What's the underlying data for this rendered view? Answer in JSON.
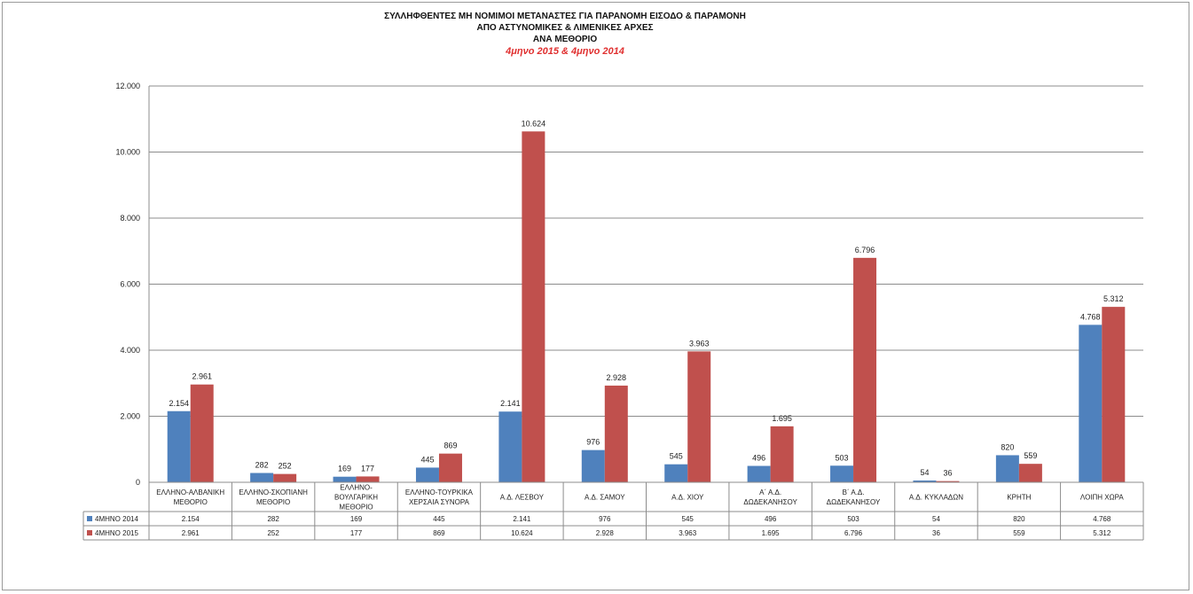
{
  "chart_data": {
    "type": "bar",
    "title_lines": [
      "ΣΥΛΛΗΦΘΕΝΤΕΣ ΜΗ ΝΟΜΙΜΟΙ ΜΕΤΑΝΑΣΤΕΣ ΓΙΑ ΠΑΡΑΝΟΜΗ ΕΙΣΟΔΟ & ΠΑΡΑΜΟΝΗ",
      "ΑΠΟ ΑΣΤΥΝΟΜΙΚΕΣ & ΛΙΜΕΝΙΚΕΣ ΑΡΧΕΣ",
      "ΑΝΑ ΜΕΘΟΡΙΟ"
    ],
    "subtitle": "4μηνο 2015  &  4μηνο 2014",
    "categories": [
      [
        "ΕΛΛΗΝΟ-ΑΛΒΑΝΙΚΗ",
        "ΜΕΘΟΡΙΟ"
      ],
      [
        "ΕΛΛΗΝΟ-ΣΚΟΠΙΑΝΗ",
        "ΜΕΘΟΡΙΟ"
      ],
      [
        "ΕΛΛΗΝΟ-",
        "ΒΟΥΛΓΑΡΙΚΗ",
        "ΜΕΘΟΡΙΟ"
      ],
      [
        "ΕΛΛΗΝΟ-ΤΟΥΡΚΙΚΑ",
        "ΧΕΡΣΑΙΑ ΣΥΝΟΡΑ"
      ],
      [
        "Α.Δ. ΛΕΣΒΟΥ"
      ],
      [
        "Α.Δ. ΣΑΜΟΥ"
      ],
      [
        "Α.Δ. ΧΙΟΥ"
      ],
      [
        "Α΄ Α.Δ.",
        "ΔΩΔΕΚΑΝΗΣΟΥ"
      ],
      [
        "Β΄ Α.Δ.",
        "ΔΩΔΕΚΑΝΗΣΟΥ"
      ],
      [
        "Α.Δ. ΚΥΚΛΑΔΩΝ"
      ],
      [
        "ΚΡΗΤΗ"
      ],
      [
        "ΛΟΙΠΗ ΧΩΡΑ"
      ]
    ],
    "series": [
      {
        "name": "4ΜΗΝΟ 2014",
        "color": "#4f81bd",
        "values": [
          2154,
          282,
          169,
          445,
          2141,
          976,
          545,
          496,
          503,
          54,
          820,
          4768
        ],
        "labels": [
          "2.154",
          "282",
          "169",
          "445",
          "2.141",
          "976",
          "545",
          "496",
          "503",
          "54",
          "820",
          "4.768"
        ]
      },
      {
        "name": "4ΜΗΝΟ 2015",
        "color": "#c0504d",
        "values": [
          2961,
          252,
          177,
          869,
          10624,
          2928,
          3963,
          1695,
          6796,
          36,
          559,
          5312
        ],
        "labels": [
          "2.961",
          "252",
          "177",
          "869",
          "10.624",
          "2.928",
          "3.963",
          "1.695",
          "6.796",
          "36",
          "559",
          "5.312"
        ]
      }
    ],
    "ylim": [
      0,
      12000
    ],
    "yticks": [
      0,
      2000,
      4000,
      6000,
      8000,
      10000,
      12000
    ],
    "ytick_labels": [
      "0",
      "2.000",
      "4.000",
      "6.000",
      "8.000",
      "10.000",
      "12.000"
    ],
    "grid": true,
    "data_table": true
  }
}
